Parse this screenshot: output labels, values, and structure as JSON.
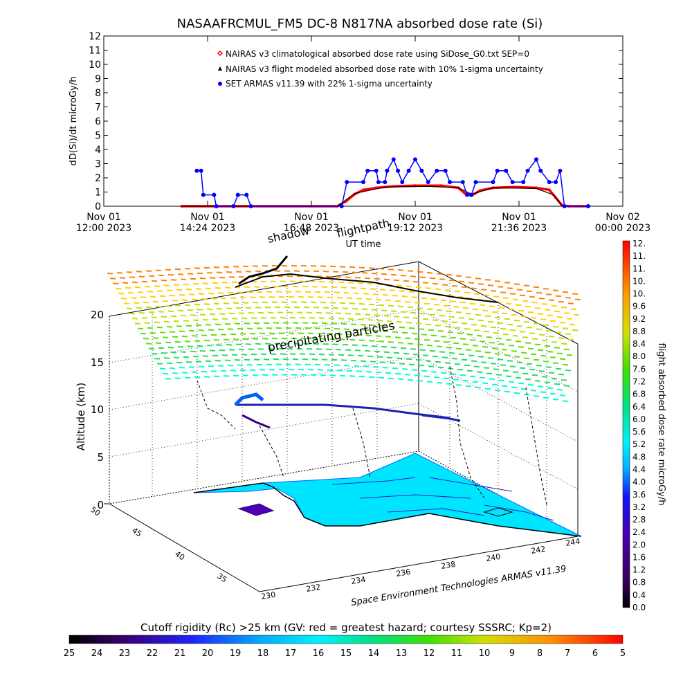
{
  "chart_data": [
    {
      "type": "line",
      "title": "NASAAFRCMUL_FM5 DC-8   N817NA absorbed dose rate (Si)",
      "ylabel": "dD(Si)/dt microGy/h",
      "xlabel": "UT time",
      "ylim": [
        0,
        12
      ],
      "xlim_hours": [
        12.0,
        24.0
      ],
      "y_ticks": [
        "0",
        "1",
        "2",
        "3",
        "4",
        "5",
        "6",
        "7",
        "8",
        "9",
        "10",
        "11",
        "12"
      ],
      "x_ticks": [
        {
          "hour": 12.0,
          "line1": "Nov 01",
          "line2": "12:00 2023"
        },
        {
          "hour": 14.4,
          "line1": "Nov 01",
          "line2": "14:24 2023"
        },
        {
          "hour": 16.8,
          "line1": "Nov 01",
          "line2": "16:48 2023"
        },
        {
          "hour": 19.2,
          "line1": "Nov 01",
          "line2": "19:12 2023"
        },
        {
          "hour": 21.6,
          "line1": "Nov 01",
          "line2": "21:36 2023"
        },
        {
          "hour": 24.0,
          "line1": "Nov 02",
          "line2": "00:00 2023"
        }
      ],
      "legend_position": "top-center",
      "legend": [
        {
          "marker": "diamond",
          "color": "#ff0000",
          "label": "NAIRAS v3 climatological absorbed dose rate using SiDose_G0.txt SEP=0"
        },
        {
          "marker": "triangle",
          "color": "#000000",
          "label": "NAIRAS v3 flight modeled absorbed dose rate with 10% 1-sigma uncertainty"
        },
        {
          "marker": "circle",
          "color": "#0000ff",
          "label": "SET ARMAS v11.39 with 22% 1-sigma uncertainty"
        }
      ],
      "series": [
        {
          "name": "NAIRAS v3 climatological absorbed dose rate using SiDose_G0.txt SEP=0",
          "color": "#ff0000",
          "points": [
            [
              13.8,
              0
            ],
            [
              16.8,
              0
            ],
            [
              17.4,
              0
            ],
            [
              17.6,
              0.35
            ],
            [
              17.8,
              0.85
            ],
            [
              18.0,
              1.15
            ],
            [
              18.3,
              1.3
            ],
            [
              18.7,
              1.4
            ],
            [
              19.2,
              1.45
            ],
            [
              19.8,
              1.45
            ],
            [
              20.2,
              1.3
            ],
            [
              20.35,
              0.9
            ],
            [
              20.5,
              0.75
            ],
            [
              20.7,
              1.1
            ],
            [
              21.0,
              1.3
            ],
            [
              21.5,
              1.35
            ],
            [
              22.0,
              1.3
            ],
            [
              22.3,
              1.15
            ],
            [
              22.45,
              0.6
            ],
            [
              22.6,
              0.05
            ],
            [
              22.75,
              0
            ],
            [
              23.2,
              0
            ]
          ]
        },
        {
          "name": "NAIRAS v3 flight modeled absorbed dose rate with 10% 1-sigma uncertainty",
          "color": "#000000",
          "points": [
            [
              13.8,
              0
            ],
            [
              17.4,
              0
            ],
            [
              17.8,
              0.9
            ],
            [
              18.5,
              1.35
            ],
            [
              19.5,
              1.4
            ],
            [
              20.2,
              1.3
            ],
            [
              20.5,
              0.85
            ],
            [
              21.0,
              1.3
            ],
            [
              22.0,
              1.25
            ],
            [
              22.4,
              0.8
            ],
            [
              22.6,
              0
            ],
            [
              23.2,
              0
            ]
          ]
        },
        {
          "name": "SET ARMAS v11.39 with 22% 1-sigma uncertainty",
          "color": "#0000ff",
          "points": [
            [
              14.15,
              2.5
            ],
            [
              14.25,
              2.5
            ],
            [
              14.3,
              0.8
            ],
            [
              14.55,
              0.8
            ],
            [
              14.6,
              0
            ],
            [
              15.0,
              0
            ],
            [
              15.1,
              0.8
            ],
            [
              15.3,
              0.8
            ],
            [
              15.4,
              0
            ],
            [
              17.5,
              0
            ],
            [
              17.62,
              1.7
            ],
            [
              18.0,
              1.7
            ],
            [
              18.1,
              2.5
            ],
            [
              18.3,
              2.5
            ],
            [
              18.35,
              1.7
            ],
            [
              18.5,
              1.7
            ],
            [
              18.55,
              2.5
            ],
            [
              18.7,
              3.3
            ],
            [
              18.8,
              2.5
            ],
            [
              18.9,
              1.7
            ],
            [
              19.05,
              2.5
            ],
            [
              19.2,
              3.3
            ],
            [
              19.35,
              2.5
            ],
            [
              19.5,
              1.7
            ],
            [
              19.7,
              2.5
            ],
            [
              19.9,
              2.5
            ],
            [
              20.0,
              1.7
            ],
            [
              20.3,
              1.7
            ],
            [
              20.4,
              0.8
            ],
            [
              20.5,
              0.8
            ],
            [
              20.6,
              1.7
            ],
            [
              21.0,
              1.7
            ],
            [
              21.1,
              2.5
            ],
            [
              21.3,
              2.5
            ],
            [
              21.45,
              1.7
            ],
            [
              21.7,
              1.7
            ],
            [
              21.8,
              2.5
            ],
            [
              22.0,
              3.3
            ],
            [
              22.1,
              2.5
            ],
            [
              22.3,
              1.7
            ],
            [
              22.45,
              1.7
            ],
            [
              22.55,
              2.5
            ],
            [
              22.65,
              0
            ],
            [
              23.2,
              0
            ]
          ]
        }
      ]
    },
    {
      "type": "scatter",
      "zlabel": "Altitude (km)",
      "z_ticks": [
        "0",
        "5",
        "10",
        "15",
        "20"
      ],
      "zlim": [
        0,
        20
      ],
      "lon_ticks": [
        "230",
        "232",
        "234",
        "236",
        "238",
        "240",
        "242",
        "244"
      ],
      "lat_ticks": [
        "35",
        "40",
        "45",
        "50"
      ],
      "subtitle": "Space Environment Technologies ARMAS v11.39",
      "annotations": [
        "flightpath",
        "shadow",
        "precipitating particles"
      ]
    }
  ],
  "colorbar_right": {
    "label": "flight absorbed dose rate microGy/h",
    "range": [
      0,
      12
    ],
    "ticks": [
      "12.",
      "11.",
      "11.",
      "10.",
      "10.",
      "9.6",
      "9.2",
      "8.8",
      "8.4",
      "8.0",
      "7.6",
      "7.2",
      "6.8",
      "6.4",
      "6.0",
      "5.6",
      "5.2",
      "4.8",
      "4.4",
      "4.0",
      "3.6",
      "3.2",
      "2.8",
      "2.4",
      "2.0",
      "1.6",
      "1.2",
      "0.8",
      "0.4",
      "0.0"
    ]
  },
  "colorbar_bottom": {
    "label": "Cutoff rigidity (Rc) >25 km (GV: red = greatest hazard; courtesy SSSRC; Kp=2)",
    "ticks": [
      "25",
      "24",
      "23",
      "22",
      "21",
      "20",
      "19",
      "18",
      "17",
      "16",
      "15",
      "14",
      "13",
      "12",
      "11",
      "10",
      "9",
      "8",
      "7",
      "6",
      "5"
    ]
  },
  "colors": {
    "dose_colormap": [
      "#000000",
      "#3a0060",
      "#4a00b0",
      "#1010ff",
      "#0070ff",
      "#00c0ff",
      "#00ffd0",
      "#20e060",
      "#60e000",
      "#c0e000",
      "#ffd000",
      "#ff8000",
      "#ff0000"
    ],
    "ground": "#00e5ff"
  }
}
